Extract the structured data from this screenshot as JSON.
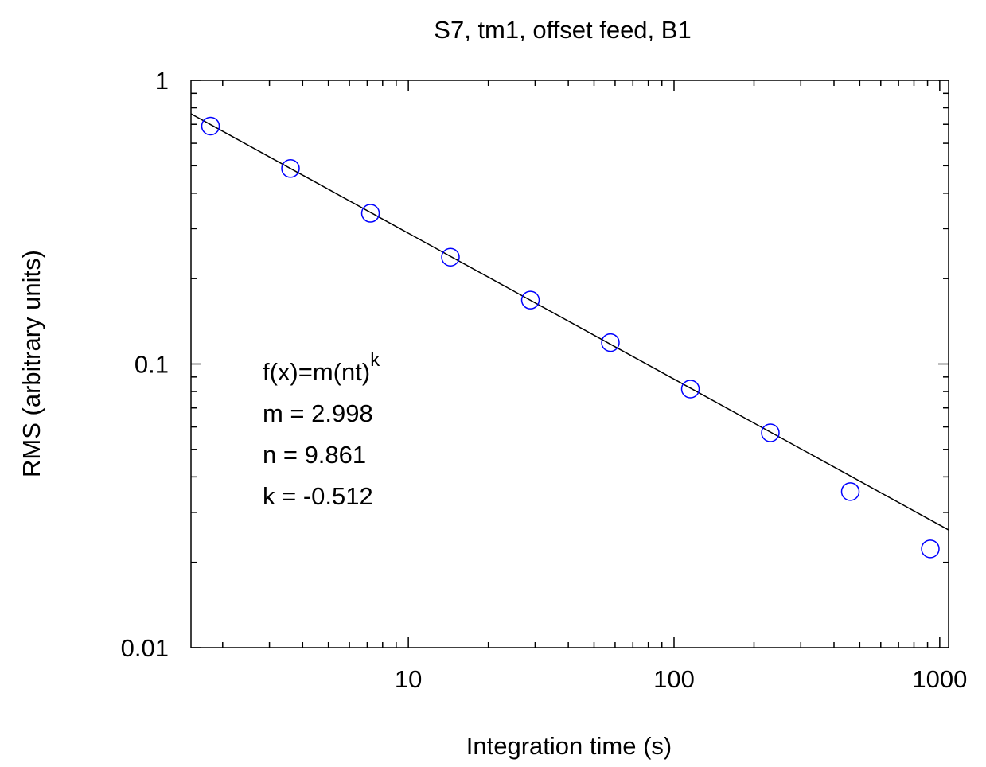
{
  "chart_data": {
    "type": "scatter",
    "title": "S7, tm1, offset feed, B1",
    "x_label": "Integration time (s)",
    "y_label": "RMS (arbitrary units)",
    "x": [
      1.8,
      3.6,
      7.2,
      14.4,
      28.8,
      57.6,
      115.2,
      230.4,
      460.8,
      921.6
    ],
    "series": [
      {
        "color": "#0000ff",
        "values": [
          0.69,
          0.489,
          0.34,
          0.238,
          0.168,
          0.119,
          0.0816,
          0.0572,
          0.0355,
          0.0223
        ]
      }
    ],
    "fit": {
      "color": "#000000",
      "x": [
        1.52,
        1080
      ],
      "values": [
        0.762,
        0.026
      ]
    },
    "annotation": {
      "formula": {
        "base": "f(x)=m(nt)",
        "superscript": "k"
      },
      "lines": [
        "m = 2.998",
        "n = 9.861",
        "k = -0.512"
      ]
    },
    "xlog": true,
    "ylog": true,
    "xlim": [
      1.52,
      1080
    ],
    "ylim": [
      0.01,
      1
    ],
    "xticks": [
      10,
      100,
      1000
    ],
    "yticks": [
      {
        "value": 0.01,
        "label": "0.01"
      },
      {
        "value": 0.1,
        "label": "0.1"
      },
      1
    ],
    "xminor_ticks": [
      2,
      3,
      4,
      5,
      6,
      7,
      8,
      9,
      20,
      30,
      40,
      50,
      60,
      70,
      80,
      90,
      200,
      300,
      400,
      500,
      600,
      700,
      800,
      900
    ],
    "yminor_ticks": [
      0.02,
      0.03,
      0.04,
      0.05,
      0.06,
      0.07,
      0.08,
      0.09,
      0.2,
      0.3,
      0.4,
      0.5,
      0.6,
      0.7,
      0.8,
      0.9
    ]
  }
}
